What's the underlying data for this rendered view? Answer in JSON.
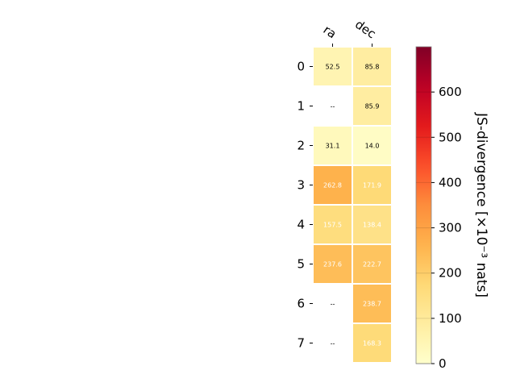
{
  "chart_data": {
    "type": "heatmap",
    "columns": [
      "ra",
      "dec"
    ],
    "rows": [
      "0",
      "1",
      "2",
      "3",
      "4",
      "5",
      "6",
      "7"
    ],
    "values": [
      [
        52.5,
        85.8
      ],
      [
        null,
        85.9
      ],
      [
        31.1,
        14.0
      ],
      [
        262.8,
        171.9
      ],
      [
        157.5,
        138.4
      ],
      [
        237.6,
        222.7
      ],
      [
        null,
        238.7
      ],
      [
        null,
        168.3
      ]
    ],
    "cell_labels": [
      [
        "52.5",
        "85.8"
      ],
      [
        "--",
        "85.9"
      ],
      [
        "31.1",
        "14.0"
      ],
      [
        "262.8",
        "171.9"
      ],
      [
        "157.5",
        "138.4"
      ],
      [
        "237.6",
        "222.7"
      ],
      [
        "--",
        "238.7"
      ],
      [
        "--",
        "168.3"
      ]
    ],
    "colorbar": {
      "label": "JS-divergence [×10⁻³ nats]",
      "range": [
        0,
        700
      ],
      "ticks": [
        0,
        100,
        200,
        300,
        400,
        500,
        600
      ],
      "colormap": "YlOrRd"
    }
  }
}
